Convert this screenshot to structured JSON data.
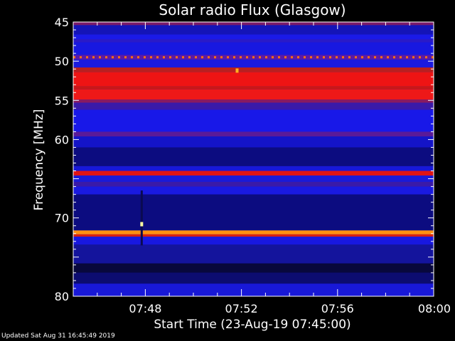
{
  "chart_data": {
    "type": "heatmap",
    "title": "Solar radio Flux (Glasgow)",
    "xlabel": "Start Time (23-Aug-19 07:45:00)",
    "ylabel": "Frequency [MHz]",
    "xlim_minutes": [
      0,
      15
    ],
    "ylim": [
      45,
      80
    ],
    "y_inverted": true,
    "x_ticks": [
      {
        "minute": 3,
        "label": "07:48"
      },
      {
        "minute": 7,
        "label": "07:52"
      },
      {
        "minute": 11,
        "label": "07:56"
      },
      {
        "minute": 15,
        "label": "08:00"
      }
    ],
    "y_ticks": [
      {
        "value": 45,
        "label": "45"
      },
      {
        "value": 50,
        "label": "50"
      },
      {
        "value": 55,
        "label": "55"
      },
      {
        "value": 60,
        "label": "60"
      },
      {
        "value": 70,
        "label": "70"
      },
      {
        "value": 80,
        "label": "80"
      }
    ],
    "background_color": "#1a1ad8",
    "bands": [
      {
        "from": 45.0,
        "to": 45.4,
        "color": "#7a1a6a"
      },
      {
        "from": 45.4,
        "to": 46.6,
        "color": "#1414b8"
      },
      {
        "from": 46.6,
        "to": 47.2,
        "color": "#1a1ae8"
      },
      {
        "from": 47.2,
        "to": 47.6,
        "color": "#2a1ac8"
      },
      {
        "from": 47.6,
        "to": 49.2,
        "color": "#1818e0"
      },
      {
        "from": 49.2,
        "to": 49.8,
        "color": "#5a1aa8"
      },
      {
        "from": 49.8,
        "to": 50.8,
        "color": "#1a1ae0"
      },
      {
        "from": 50.8,
        "to": 51.4,
        "color": "#b82020"
      },
      {
        "from": 51.4,
        "to": 53.2,
        "color": "#ee1414"
      },
      {
        "from": 53.2,
        "to": 53.6,
        "color": "#c81818"
      },
      {
        "from": 53.6,
        "to": 54.9,
        "color": "#ee1818"
      },
      {
        "from": 54.9,
        "to": 55.3,
        "color": "#8a1a60"
      },
      {
        "from": 55.3,
        "to": 56.2,
        "color": "#3a1aa8"
      },
      {
        "from": 56.2,
        "to": 59.0,
        "color": "#1818e8"
      },
      {
        "from": 59.0,
        "to": 59.6,
        "color": "#5a1a98"
      },
      {
        "from": 59.6,
        "to": 61.0,
        "color": "#1414c8"
      },
      {
        "from": 61.0,
        "to": 63.4,
        "color": "#0c0c80"
      },
      {
        "from": 63.4,
        "to": 64.0,
        "color": "#1818d8"
      },
      {
        "from": 64.0,
        "to": 64.6,
        "color": "#e01414"
      },
      {
        "from": 64.6,
        "to": 65.4,
        "color": "#1a1ad8"
      },
      {
        "from": 65.4,
        "to": 66.0,
        "color": "#3a1aa8"
      },
      {
        "from": 66.0,
        "to": 67.0,
        "color": "#1a1ae0"
      },
      {
        "from": 67.0,
        "to": 71.6,
        "color": "#0c0c80"
      },
      {
        "from": 71.6,
        "to": 72.1,
        "color": "#ff9010"
      },
      {
        "from": 72.1,
        "to": 72.4,
        "color": "#d82010"
      },
      {
        "from": 72.4,
        "to": 73.4,
        "color": "#1818e0"
      },
      {
        "from": 73.4,
        "to": 75.8,
        "color": "#14149c"
      },
      {
        "from": 75.8,
        "to": 77.0,
        "color": "#08083c"
      },
      {
        "from": 77.0,
        "to": 78.4,
        "color": "#0c0c70"
      },
      {
        "from": 78.4,
        "to": 80.0,
        "color": "#1818d8"
      }
    ],
    "dashed_band": {
      "frequency": 49.5,
      "color": "#ff7010"
    },
    "spots": [
      {
        "minute": 6.82,
        "frequency": 51.2,
        "color": "#ffb020"
      },
      {
        "minute": 2.85,
        "frequency": 70.8,
        "color": "#ffffa0"
      }
    ]
  },
  "footer_text": "Updated Sat Aug 31 16:45:49 2019"
}
